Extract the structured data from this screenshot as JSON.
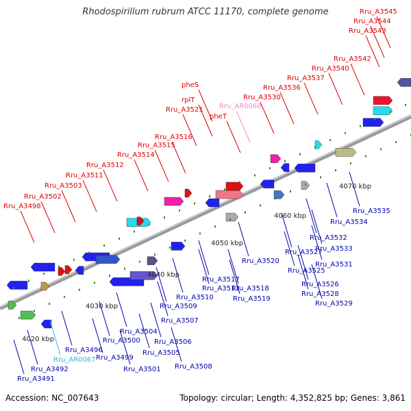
{
  "title": "Rhodospirillum rubrum ATCC 11170, complete genome",
  "accession": "Accession: NC_007643",
  "summary": "Topology: circular; Length: 4,352,825 bp; Genes: 3,861",
  "colors": {
    "backbone": "#9a9a9a",
    "top_label": "#dd0000",
    "bottom_label": "#0000aa",
    "pink_label": "#ee88cc",
    "cyan_label": "#22bbdd"
  },
  "scale_labels": [
    "4020 kbp",
    "4030 kbp",
    "4040 kbp",
    "4050 kbp",
    "4060 kbp",
    "4070 kbp"
  ],
  "top_labels": [
    {
      "text": "Rru_A3498",
      "color": "red"
    },
    {
      "text": "Rru_A3502",
      "color": "red"
    },
    {
      "text": "Rru_A3503",
      "color": "red"
    },
    {
      "text": "Rru_A3511",
      "color": "red"
    },
    {
      "text": "Rru_A3512",
      "color": "red"
    },
    {
      "text": "Rru_A3514",
      "color": "red"
    },
    {
      "text": "Rru_A3515",
      "color": "red"
    },
    {
      "text": "Rru_A3516",
      "color": "red"
    },
    {
      "text": "Rru_A3521",
      "color": "red"
    },
    {
      "text": "rplT",
      "color": "red"
    },
    {
      "text": "pheS",
      "color": "red"
    },
    {
      "text": "pheT",
      "color": "red"
    },
    {
      "text": "Rru_AR0068",
      "color": "pink"
    },
    {
      "text": "Rru_A3530",
      "color": "red"
    },
    {
      "text": "Rru_A3536",
      "color": "red"
    },
    {
      "text": "Rru_A3537",
      "color": "red"
    },
    {
      "text": "Rru_A3540",
      "color": "red"
    },
    {
      "text": "Rru_A3542",
      "color": "red"
    },
    {
      "text": "Rru_A3543",
      "color": "red"
    },
    {
      "text": "Rru_A3544",
      "color": "red"
    },
    {
      "text": "Rru_A3545",
      "color": "red"
    }
  ],
  "bottom_labels": [
    {
      "text": "Rru_A3491",
      "color": "blue"
    },
    {
      "text": "Rru_A3492",
      "color": "blue"
    },
    {
      "text": "Rru_AR0067",
      "color": "cyan"
    },
    {
      "text": "Rru_A3496",
      "color": "blue"
    },
    {
      "text": "Rru_A3499",
      "color": "blue"
    },
    {
      "text": "Rru_A3500",
      "color": "blue"
    },
    {
      "text": "Rru_A3501",
      "color": "blue"
    },
    {
      "text": "Rru_A3504",
      "color": "blue"
    },
    {
      "text": "Rru_A3505",
      "color": "blue"
    },
    {
      "text": "Rru_A3506",
      "color": "blue"
    },
    {
      "text": "Rru_A3507",
      "color": "blue"
    },
    {
      "text": "Rru_A3508",
      "color": "blue"
    },
    {
      "text": "Rru_A3509",
      "color": "blue"
    },
    {
      "text": "Rru_A3510",
      "color": "blue"
    },
    {
      "text": "Rru_A3513",
      "color": "blue"
    },
    {
      "text": "Rru_A3517",
      "color": "blue"
    },
    {
      "text": "Rru_A3518",
      "color": "blue"
    },
    {
      "text": "Rru_A3519",
      "color": "blue"
    },
    {
      "text": "Rru_A3520",
      "color": "blue"
    },
    {
      "text": "Rru_A3525",
      "color": "blue"
    },
    {
      "text": "Rru_A3526",
      "color": "blue"
    },
    {
      "text": "Rru_A3527",
      "color": "blue"
    },
    {
      "text": "Rru_A3528",
      "color": "blue"
    },
    {
      "text": "Rru_A3529",
      "color": "blue"
    },
    {
      "text": "Rru_A3531",
      "color": "blue"
    },
    {
      "text": "Rru_A3532",
      "color": "blue"
    },
    {
      "text": "Rru_A3533",
      "color": "blue"
    },
    {
      "text": "Rru_A3534",
      "color": "blue"
    },
    {
      "text": "Rru_A3535",
      "color": "blue"
    }
  ]
}
